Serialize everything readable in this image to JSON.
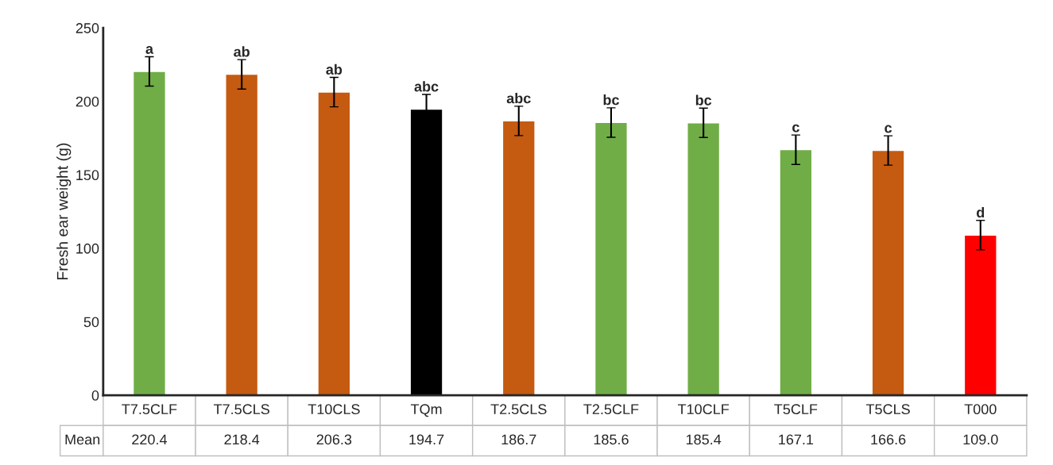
{
  "chart_data": {
    "type": "bar",
    "ylabel": "Fresh ear weight (g)",
    "categories": [
      "T7.5CLF",
      "T7.5CLS",
      "T10CLS",
      "TQm",
      "T2.5CLS",
      "T2.5CLF",
      "T10CLF",
      "T5CLF",
      "T5CLS",
      "T000"
    ],
    "values": [
      220.4,
      218.4,
      206.3,
      194.7,
      186.7,
      185.6,
      185.4,
      167.1,
      166.6,
      109.0
    ],
    "value_labels": [
      "220.4",
      "218.4",
      "206.3",
      "194.7",
      "186.7",
      "185.6",
      "185.4",
      "167.1",
      "166.6",
      "109.0"
    ],
    "colors": [
      "#70ad47",
      "#c55a11",
      "#c55a11",
      "#000000",
      "#c55a11",
      "#70ad47",
      "#70ad47",
      "#70ad47",
      "#c55a11",
      "#ff0000"
    ],
    "errors": [
      10,
      10,
      10,
      10,
      10,
      10,
      10,
      10,
      10,
      10
    ],
    "ylim": [
      0,
      250
    ],
    "yticks": [
      0,
      50,
      100,
      150,
      200,
      250
    ],
    "grid": false,
    "annotations": [
      "Mean",
      {
        "text": "a",
        "x": "T7.5CLF",
        "y": 230.4
      },
      {
        "text": "ab",
        "x": "T7.5CLS",
        "y": 228.4
      },
      {
        "text": "ab",
        "x": "T10CLS",
        "y": 216.3
      },
      {
        "text": "abc",
        "x": "TQm",
        "y": 204.7
      },
      {
        "text": "abc",
        "x": "T2.5CLS",
        "y": 196.7
      },
      {
        "text": "bc",
        "x": "T2.5CLF",
        "y": 195.6
      },
      {
        "text": "bc",
        "x": "T10CLF",
        "y": 195.4
      },
      {
        "text": "c",
        "x": "T5CLF",
        "y": 177.1
      },
      {
        "text": "c",
        "x": "T5CLS",
        "y": 176.6
      },
      {
        "text": "d",
        "x": "T000",
        "y": 119.0
      }
    ]
  }
}
